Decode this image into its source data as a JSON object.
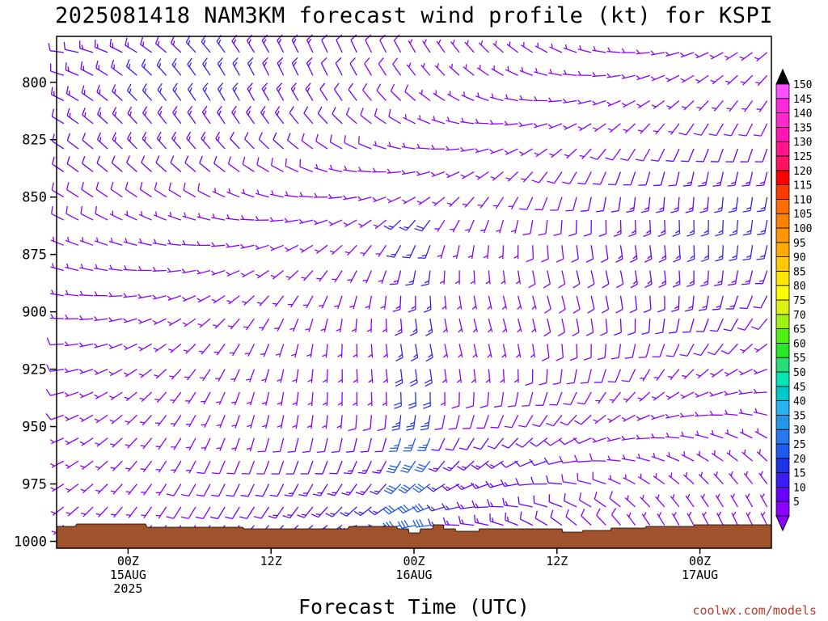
{
  "chart_data": {
    "type": "wind-barb-time-height",
    "title": "2025081418 NAM3KM forecast wind profile (kt) for KSPI",
    "xlabel": "Forecast Time (UTC)",
    "ylabel": "",
    "credit": "coolwx.com/models",
    "y_axis": {
      "unit": "hPa",
      "range": [
        780,
        1003
      ],
      "ticks": [
        800,
        825,
        850,
        875,
        900,
        925,
        950,
        975,
        1000
      ]
    },
    "x_axis": {
      "unit": "forecast hour",
      "range": [
        -6,
        54
      ],
      "ticks": [
        {
          "hour": 0,
          "lines": [
            "00Z",
            "15AUG",
            "2025"
          ]
        },
        {
          "hour": 12,
          "lines": [
            "12Z"
          ]
        },
        {
          "hour": 24,
          "lines": [
            "00Z",
            "16AUG"
          ]
        },
        {
          "hour": 36,
          "lines": [
            "12Z"
          ]
        },
        {
          "hour": 48,
          "lines": [
            "00Z",
            "17AUG"
          ]
        }
      ]
    },
    "levels_hpa": [
      787,
      797,
      808,
      818,
      829,
      839,
      850,
      860,
      871,
      882,
      893,
      903,
      914,
      925,
      935,
      945,
      955,
      965,
      975,
      985,
      993
    ],
    "hours_range": [
      -6,
      54
    ],
    "colorbar": {
      "unit": "kt",
      "levels": [
        5,
        10,
        15,
        20,
        25,
        30,
        35,
        40,
        45,
        50,
        55,
        60,
        65,
        70,
        75,
        80,
        85,
        90,
        95,
        100,
        105,
        110,
        115,
        120,
        125,
        130,
        135,
        140,
        145,
        150
      ],
      "colors": [
        "#8b00ff",
        "#6a00ff",
        "#3c1ef0",
        "#1e32e6",
        "#1e5af0",
        "#2878f0",
        "#2896e6",
        "#28b4f0",
        "#00c8c8",
        "#00e6b4",
        "#28dc78",
        "#28e628",
        "#50f014",
        "#a0f014",
        "#dcf014",
        "#ffff00",
        "#ffe600",
        "#ffc800",
        "#ffaa00",
        "#ff9600",
        "#ff8200",
        "#ff6e00",
        "#ff3c00",
        "#ff0000",
        "#ff1464",
        "#ff148c",
        "#ff14b4",
        "#ff28c8",
        "#ff28dc",
        "#ff50ff"
      ]
    },
    "terrain_color": "#a0522d"
  }
}
